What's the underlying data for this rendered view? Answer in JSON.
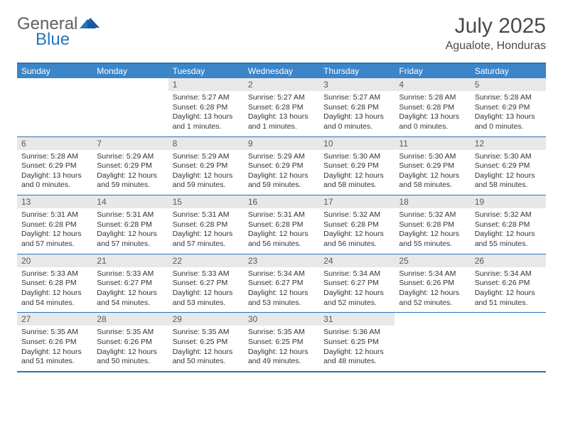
{
  "logo": {
    "part1": "General",
    "part2": "Blue"
  },
  "title": "July 2025",
  "location": "Agualote, Honduras",
  "colors": {
    "header_bg": "#3b85c8",
    "border": "#2973b8",
    "daynum_bg": "#e8e8e8",
    "text": "#333333",
    "title_text": "#4a4a4a",
    "logo_gray": "#6a6a6a"
  },
  "day_names": [
    "Sunday",
    "Monday",
    "Tuesday",
    "Wednesday",
    "Thursday",
    "Friday",
    "Saturday"
  ],
  "weeks": [
    [
      null,
      null,
      {
        "n": 1,
        "sr": "5:27 AM",
        "ss": "6:28 PM",
        "dl": "13 hours and 1 minutes."
      },
      {
        "n": 2,
        "sr": "5:27 AM",
        "ss": "6:28 PM",
        "dl": "13 hours and 1 minutes."
      },
      {
        "n": 3,
        "sr": "5:27 AM",
        "ss": "6:28 PM",
        "dl": "13 hours and 0 minutes."
      },
      {
        "n": 4,
        "sr": "5:28 AM",
        "ss": "6:28 PM",
        "dl": "13 hours and 0 minutes."
      },
      {
        "n": 5,
        "sr": "5:28 AM",
        "ss": "6:29 PM",
        "dl": "13 hours and 0 minutes."
      }
    ],
    [
      {
        "n": 6,
        "sr": "5:28 AM",
        "ss": "6:29 PM",
        "dl": "13 hours and 0 minutes."
      },
      {
        "n": 7,
        "sr": "5:29 AM",
        "ss": "6:29 PM",
        "dl": "12 hours and 59 minutes."
      },
      {
        "n": 8,
        "sr": "5:29 AM",
        "ss": "6:29 PM",
        "dl": "12 hours and 59 minutes."
      },
      {
        "n": 9,
        "sr": "5:29 AM",
        "ss": "6:29 PM",
        "dl": "12 hours and 59 minutes."
      },
      {
        "n": 10,
        "sr": "5:30 AM",
        "ss": "6:29 PM",
        "dl": "12 hours and 58 minutes."
      },
      {
        "n": 11,
        "sr": "5:30 AM",
        "ss": "6:29 PM",
        "dl": "12 hours and 58 minutes."
      },
      {
        "n": 12,
        "sr": "5:30 AM",
        "ss": "6:29 PM",
        "dl": "12 hours and 58 minutes."
      }
    ],
    [
      {
        "n": 13,
        "sr": "5:31 AM",
        "ss": "6:28 PM",
        "dl": "12 hours and 57 minutes."
      },
      {
        "n": 14,
        "sr": "5:31 AM",
        "ss": "6:28 PM",
        "dl": "12 hours and 57 minutes."
      },
      {
        "n": 15,
        "sr": "5:31 AM",
        "ss": "6:28 PM",
        "dl": "12 hours and 57 minutes."
      },
      {
        "n": 16,
        "sr": "5:31 AM",
        "ss": "6:28 PM",
        "dl": "12 hours and 56 minutes."
      },
      {
        "n": 17,
        "sr": "5:32 AM",
        "ss": "6:28 PM",
        "dl": "12 hours and 56 minutes."
      },
      {
        "n": 18,
        "sr": "5:32 AM",
        "ss": "6:28 PM",
        "dl": "12 hours and 55 minutes."
      },
      {
        "n": 19,
        "sr": "5:32 AM",
        "ss": "6:28 PM",
        "dl": "12 hours and 55 minutes."
      }
    ],
    [
      {
        "n": 20,
        "sr": "5:33 AM",
        "ss": "6:28 PM",
        "dl": "12 hours and 54 minutes."
      },
      {
        "n": 21,
        "sr": "5:33 AM",
        "ss": "6:27 PM",
        "dl": "12 hours and 54 minutes."
      },
      {
        "n": 22,
        "sr": "5:33 AM",
        "ss": "6:27 PM",
        "dl": "12 hours and 53 minutes."
      },
      {
        "n": 23,
        "sr": "5:34 AM",
        "ss": "6:27 PM",
        "dl": "12 hours and 53 minutes."
      },
      {
        "n": 24,
        "sr": "5:34 AM",
        "ss": "6:27 PM",
        "dl": "12 hours and 52 minutes."
      },
      {
        "n": 25,
        "sr": "5:34 AM",
        "ss": "6:26 PM",
        "dl": "12 hours and 52 minutes."
      },
      {
        "n": 26,
        "sr": "5:34 AM",
        "ss": "6:26 PM",
        "dl": "12 hours and 51 minutes."
      }
    ],
    [
      {
        "n": 27,
        "sr": "5:35 AM",
        "ss": "6:26 PM",
        "dl": "12 hours and 51 minutes."
      },
      {
        "n": 28,
        "sr": "5:35 AM",
        "ss": "6:26 PM",
        "dl": "12 hours and 50 minutes."
      },
      {
        "n": 29,
        "sr": "5:35 AM",
        "ss": "6:25 PM",
        "dl": "12 hours and 50 minutes."
      },
      {
        "n": 30,
        "sr": "5:35 AM",
        "ss": "6:25 PM",
        "dl": "12 hours and 49 minutes."
      },
      {
        "n": 31,
        "sr": "5:36 AM",
        "ss": "6:25 PM",
        "dl": "12 hours and 48 minutes."
      },
      null,
      null
    ]
  ],
  "labels": {
    "sunrise": "Sunrise:",
    "sunset": "Sunset:",
    "daylight": "Daylight:"
  }
}
